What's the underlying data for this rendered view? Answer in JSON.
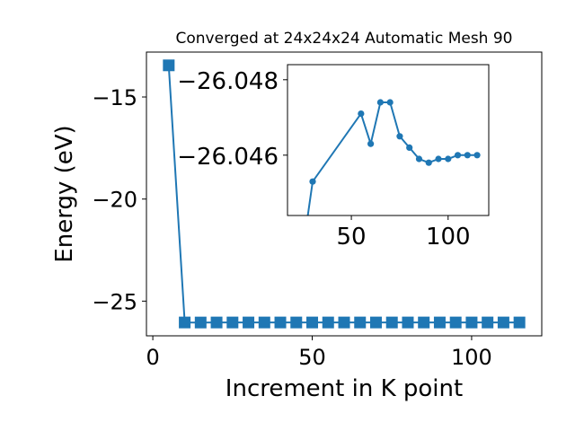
{
  "chart_data": [
    {
      "type": "line",
      "title": "Converged at 24x24x24 Automatic Mesh 90",
      "xlabel": "Increment in K point",
      "ylabel": "Energy (eV)",
      "xlim": [
        -2,
        122
      ],
      "ylim": [
        -26.7,
        -12.8
      ],
      "xticks": [
        0,
        50,
        100
      ],
      "xtick_labels": [
        "0",
        "50",
        "100"
      ],
      "yticks": [
        -15,
        -20,
        -25
      ],
      "ytick_labels": [
        "−15",
        "−20",
        "−25"
      ],
      "grid": false,
      "marker": "square",
      "color": "#1f77b4",
      "series": [
        {
          "x": [
            5,
            10,
            15,
            20,
            25,
            30,
            35,
            40,
            45,
            50,
            55,
            60,
            65,
            70,
            75,
            80,
            85,
            90,
            95,
            100,
            105,
            110,
            115
          ],
          "y": [
            -13.45,
            -26.046,
            -26.0475,
            -26.0465,
            -26.046,
            -26.046,
            -26.046,
            -26.046,
            -26.046,
            -26.046,
            -26.046,
            -26.046,
            -26.046,
            -26.046,
            -26.046,
            -26.046,
            -26.046,
            -26.046,
            -26.046,
            -26.046,
            -26.046,
            -26.046,
            -26.046
          ]
        }
      ]
    },
    {
      "type": "line",
      "title": "",
      "xlabel": "",
      "ylabel": "",
      "placement": "inset-top-right",
      "xlim": [
        17,
        121
      ],
      "ylim": [
        -26.0444,
        -26.0484
      ],
      "xticks": [
        50,
        100
      ],
      "xtick_labels": [
        "50",
        "100"
      ],
      "yticks": [
        -26.048,
        -26.046
      ],
      "ytick_labels": [
        "−26.048",
        "−26.046"
      ],
      "grid": false,
      "marker": "circle",
      "color": "#1f77b4",
      "series": [
        {
          "x": [
            25,
            30,
            55,
            60,
            65,
            70,
            75,
            80,
            85,
            90,
            95,
            100,
            105,
            110,
            115
          ],
          "y": [
            -26.0435,
            -26.0453,
            -26.0471,
            -26.0463,
            -26.0474,
            -26.0474,
            -26.0465,
            -26.0462,
            -26.0459,
            -26.0458,
            -26.0459,
            -26.0459,
            -26.046,
            -26.046,
            -26.046
          ]
        }
      ]
    }
  ]
}
